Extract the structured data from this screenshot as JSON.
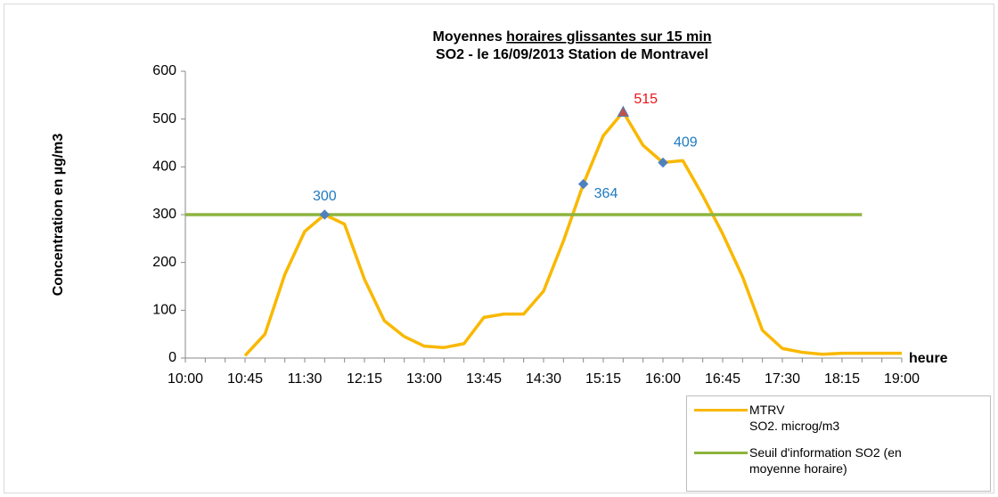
{
  "chart_data": {
    "type": "line",
    "title": [
      "Moyennes ",
      "horaires glissantes sur 15 min"
    ],
    "subtitle": "SO2 - le 16/09/2013 Station de Montravel",
    "y_label": "Concentration en µg/m3",
    "x_label": "heure",
    "categories": [
      "10:00",
      null,
      null,
      "10:45",
      null,
      null,
      "11:30",
      null,
      null,
      "12:15",
      null,
      null,
      "13:00",
      null,
      null,
      "13:45",
      null,
      null,
      "14:30",
      null,
      null,
      "15:15",
      null,
      null,
      "16:00",
      null,
      null,
      "16:45",
      null,
      null,
      "17:30",
      null,
      null,
      "18:15",
      null,
      null,
      "19:00"
    ],
    "ylim": [
      0,
      600
    ],
    "yticks": [
      0,
      100,
      200,
      300,
      400,
      500,
      600
    ],
    "grid": false,
    "legend": "bottom-right",
    "series": [
      {
        "name": "MTRV\nSO2. microg/m3",
        "color": "#f9b800",
        "values": [
          null,
          null,
          null,
          5,
          50,
          175,
          265,
          300,
          280,
          165,
          78,
          45,
          25,
          22,
          30,
          85,
          92,
          92,
          140,
          245,
          364,
          465,
          515,
          445,
          409,
          413,
          340,
          260,
          170,
          58,
          20,
          12,
          8,
          10,
          10,
          10,
          10
        ],
        "value_labels": [
          null,
          null,
          null,
          null,
          null,
          null,
          null,
          "300",
          null,
          null,
          null,
          null,
          null,
          null,
          null,
          null,
          null,
          null,
          null,
          null,
          "364",
          null,
          "515",
          null,
          "409",
          null,
          null,
          null,
          null,
          null,
          null,
          null,
          null,
          null,
          null,
          null,
          null
        ],
        "label_colors": [
          null,
          null,
          null,
          null,
          null,
          null,
          null,
          "#1f7bc0",
          null,
          null,
          null,
          null,
          null,
          null,
          null,
          null,
          null,
          null,
          null,
          null,
          "#1f7bc0",
          null,
          "#e8141c",
          null,
          "#1f7bc0",
          null,
          null,
          null,
          null,
          null,
          null,
          null,
          null,
          null,
          null,
          null,
          null
        ],
        "point_markers": [
          null,
          null,
          null,
          null,
          null,
          null,
          null,
          {
            "shape": "diamond",
            "color": "#4f81bd"
          },
          null,
          null,
          null,
          null,
          null,
          null,
          null,
          null,
          null,
          null,
          null,
          null,
          {
            "shape": "diamond",
            "color": "#4f81bd"
          },
          null,
          {
            "shape": "triangle",
            "color": "#c0504d"
          },
          null,
          {
            "shape": "diamond",
            "color": "#4f81bd"
          },
          null,
          null,
          null,
          null,
          null,
          null,
          null,
          null,
          null,
          null,
          null,
          null
        ]
      },
      {
        "name": "Seuil d'information SO2 (en\nmoyenne horaire)",
        "color": "#8db43e",
        "values": [
          300,
          300,
          300,
          300,
          300,
          300,
          300,
          300,
          300,
          300,
          300,
          300,
          300,
          300,
          300,
          300,
          300,
          300,
          300,
          300,
          300,
          300,
          300,
          300,
          300,
          300,
          300,
          300,
          300,
          300,
          300,
          300,
          300,
          300,
          300,
          null,
          null
        ]
      }
    ]
  }
}
